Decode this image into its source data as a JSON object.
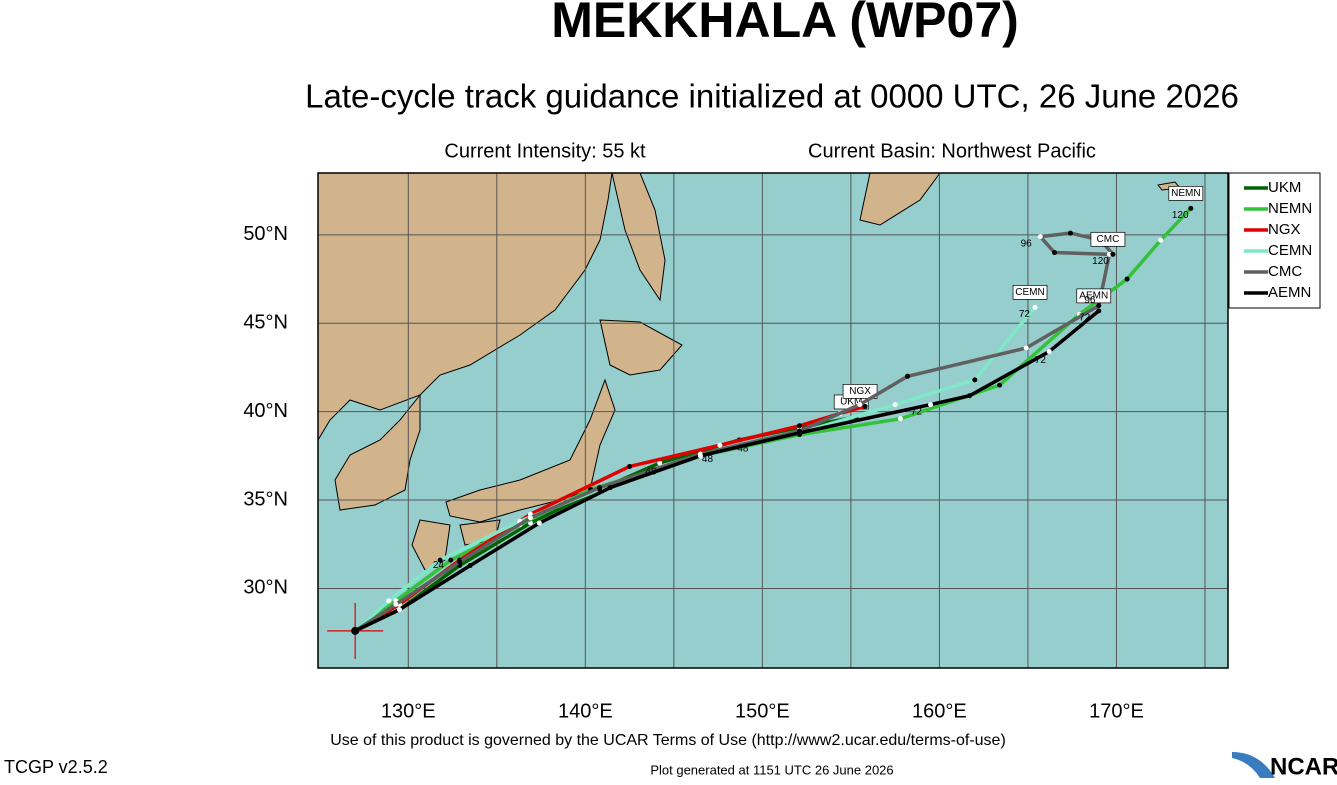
{
  "header": {
    "title": "MEKKHALA (WP07)",
    "subtitle": "Late-cycle track guidance initialized at 0000 UTC, 26 June 2026",
    "intensity": "Current Intensity: 55 kt",
    "basin": "Current Basin: Northwest Pacific"
  },
  "chart_data": {
    "type": "track-map",
    "xlim": [
      124.9,
      176.3
    ],
    "ylim": [
      25.5,
      53.5
    ],
    "xticks": [
      {
        "value": 130,
        "label": "130°E"
      },
      {
        "value": 140,
        "label": "140°E"
      },
      {
        "value": 150,
        "label": "150°E"
      },
      {
        "value": 160,
        "label": "160°E"
      },
      {
        "value": 170,
        "label": "170°E"
      }
    ],
    "xminor": [
      135,
      145,
      155,
      165,
      175
    ],
    "yticks": [
      {
        "value": 30,
        "label": "30°N"
      },
      {
        "value": 35,
        "label": "35°N"
      },
      {
        "value": 40,
        "label": "40°N"
      },
      {
        "value": 45,
        "label": "45°N"
      },
      {
        "value": 50,
        "label": "50°N"
      }
    ],
    "grid": true,
    "storm_position": {
      "lon": 127.0,
      "lat": 27.6
    },
    "series": [
      {
        "name": "UKM",
        "color": "#006400",
        "lon": [
          127.0,
          129.5,
          132.9,
          136.9,
          140.8,
          144.2,
          148.7,
          152.1,
          155.3
        ],
        "lat": [
          27.6,
          28.8,
          31.3,
          33.7,
          35.6,
          37.1,
          38.4,
          39.1,
          39.7
        ]
      },
      {
        "name": "NEMN",
        "color": "#33c23a",
        "lon": [
          127.0,
          129.3,
          132.4,
          136.3,
          140.3,
          146.5,
          152.1,
          157.8,
          163.4,
          167.9,
          170.6,
          172.5,
          174.2
        ],
        "lat": [
          27.6,
          29.3,
          31.6,
          33.6,
          35.6,
          37.5,
          38.7,
          39.6,
          41.5,
          45.5,
          47.5,
          49.7,
          51.5
        ]
      },
      {
        "name": "NGX",
        "color": "#e00000",
        "lon": [
          127.0,
          129.5,
          132.9,
          136.9,
          142.5,
          147.6,
          152.1,
          154.4,
          155.8
        ],
        "lat": [
          27.6,
          29.1,
          31.6,
          34.2,
          36.9,
          38.1,
          39.2,
          39.9,
          40.3
        ]
      },
      {
        "name": "CEMN",
        "color": "#7fe8c8",
        "lon": [
          127.0,
          128.9,
          131.8,
          136.3,
          140.8,
          146.5,
          152.1,
          157.5,
          162.0,
          165.4
        ],
        "lat": [
          27.6,
          29.3,
          31.6,
          33.8,
          35.6,
          37.5,
          38.8,
          40.4,
          41.8,
          45.9
        ]
      },
      {
        "name": "CMC",
        "color": "#606060",
        "lon": [
          127.0,
          129.3,
          132.9,
          136.9,
          140.8,
          146.5,
          152.1,
          155.5,
          158.2,
          164.9,
          169.0,
          169.6,
          166.5,
          165.7,
          167.4,
          169.1,
          169.8
        ],
        "lat": [
          27.6,
          29.1,
          31.5,
          34.0,
          35.7,
          37.6,
          38.9,
          40.4,
          42.0,
          43.6,
          46.0,
          48.9,
          49.0,
          49.9,
          50.1,
          49.7,
          48.9
        ]
      },
      {
        "name": "AEMN",
        "color": "#000000",
        "lon": [
          127.0,
          129.5,
          133.5,
          137.4,
          141.4,
          146.5,
          152.1,
          159.5,
          161.7,
          166.2,
          169.0
        ],
        "lat": [
          27.6,
          28.8,
          31.3,
          33.7,
          35.7,
          37.5,
          38.8,
          40.4,
          40.9,
          43.4,
          45.7
        ]
      }
    ],
    "hour_labels": [
      {
        "text": 24,
        "lon": 131.7,
        "lat": 31.3
      },
      {
        "text": 48,
        "lon": 143.7,
        "lat": 36.6
      },
      {
        "text": 48,
        "lon": 146.9,
        "lat": 37.3
      },
      {
        "text": 48,
        "lon": 148.9,
        "lat": 37.9
      },
      {
        "text": 72,
        "lon": 158.7,
        "lat": 40.0
      },
      {
        "text": 72,
        "lon": 164.8,
        "lat": 45.5
      },
      {
        "text": 72,
        "lon": 168.2,
        "lat": 45.3
      },
      {
        "text": 72,
        "lon": 165.7,
        "lat": 42.9
      },
      {
        "text": 96,
        "lon": 164.9,
        "lat": 49.5
      },
      {
        "text": 96,
        "lon": 168.5,
        "lat": 46.3
      },
      {
        "text": 120,
        "lon": 169.1,
        "lat": 48.5
      },
      {
        "text": 120,
        "lon": 173.6,
        "lat": 51.1
      }
    ]
  },
  "footer": {
    "terms": "Use of this product is governed by the UCAR Terms of Use (http://www2.ucar.edu/terms-of-use)",
    "generated": "Plot generated at 1151 UTC  26 June 2026",
    "version": "TCGP v2.5.2",
    "logo": "NCAR"
  }
}
